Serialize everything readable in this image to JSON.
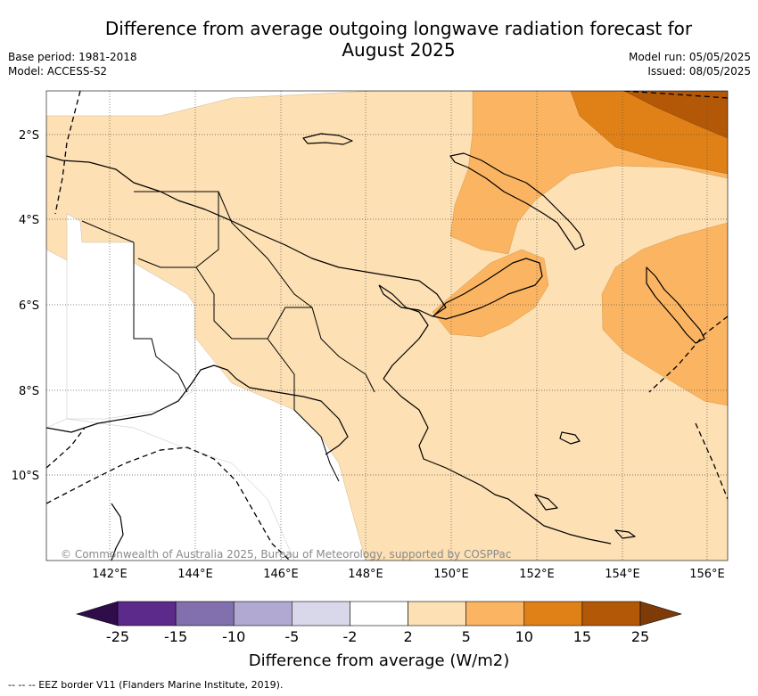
{
  "header": {
    "title_line1": "Difference from average outgoing longwave radiation forecast for",
    "title_line2": "August 2025",
    "base_period": "Base period: 1981-2018",
    "model": "Model: ACCESS-S2",
    "model_run": "Model run: 05/05/2025",
    "issued": "Issued: 08/05/2025"
  },
  "map": {
    "lat_labels": [
      "2°S",
      "4°S",
      "6°S",
      "8°S",
      "10°S"
    ],
    "lon_labels": [
      "142°E",
      "144°E",
      "146°E",
      "148°E",
      "150°E",
      "152°E",
      "154°E",
      "156°E"
    ],
    "copyright": "© Commonwealth of Australia 2025, Bureau of Meteorology, supported by COSPPac"
  },
  "colorbar": {
    "tick_labels": [
      "-25",
      "-15",
      "-10",
      "-5",
      "-2",
      "2",
      "5",
      "10",
      "15",
      "25"
    ],
    "bin_colors": [
      "#5b2a8a",
      "#8170ad",
      "#b2a9d2",
      "#d9d8ea",
      "#ffffff",
      "#fde0b4",
      "#fbb562",
      "#e08118",
      "#b35807"
    ],
    "under_color": "#2e0d4a",
    "over_color": "#7e3b08",
    "label": "Difference from average (W/m2)"
  },
  "footnote": "--  --  -- EEZ border V11 (Flanders Marine Institute, 2019)."
}
